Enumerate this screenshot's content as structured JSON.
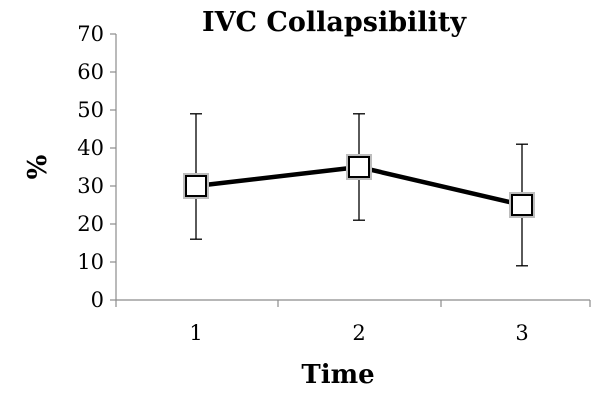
{
  "chart_data": {
    "type": "line",
    "title": "IVC Collapsibility",
    "xlabel": "Time",
    "ylabel": "%",
    "categories": [
      "1",
      "2",
      "3"
    ],
    "series": [
      {
        "values": [
          30,
          35,
          25
        ],
        "error_low": [
          16,
          21,
          9
        ],
        "error_high": [
          49,
          49,
          41
        ]
      }
    ],
    "ylim": [
      0,
      70
    ],
    "yticks": [
      0,
      10,
      20,
      30,
      40,
      50,
      60,
      70
    ],
    "grid": false,
    "legend": "none",
    "marker": "open-square",
    "line_color": "#000000"
  }
}
